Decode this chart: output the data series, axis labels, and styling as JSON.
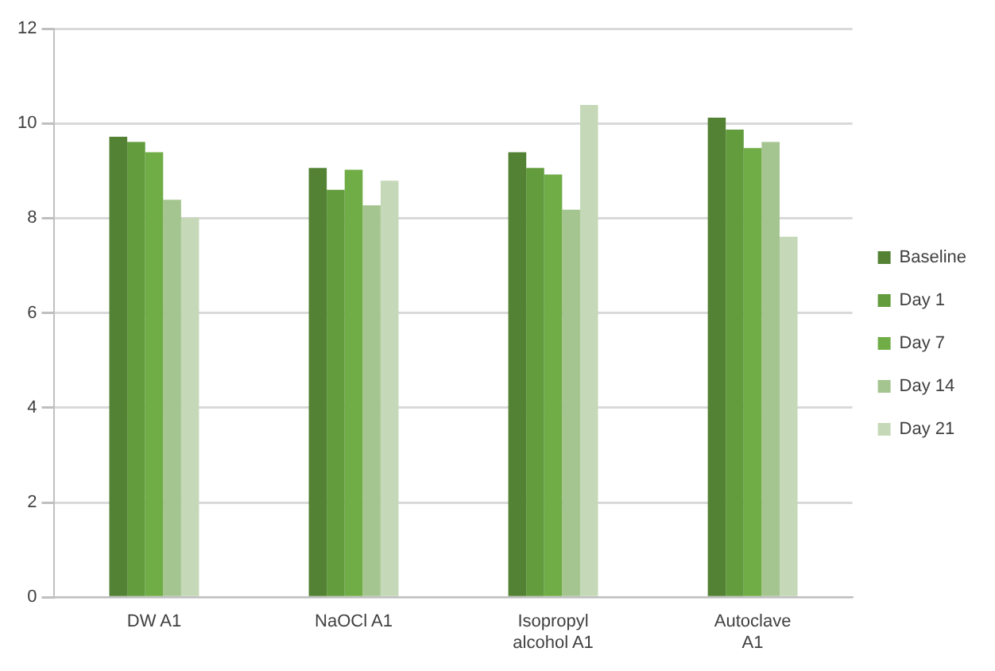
{
  "chart_data": {
    "type": "bar",
    "categories": [
      "DW A1",
      "NaOCl A1",
      "Isopropyl alcohol A1",
      "Autoclave A1"
    ],
    "series": [
      {
        "name": "Baseline",
        "color": "#548235",
        "values": [
          9.72,
          9.06,
          9.39,
          10.12
        ]
      },
      {
        "name": "Day 1",
        "color": "#629c3d",
        "values": [
          9.61,
          8.6,
          9.06,
          9.87
        ]
      },
      {
        "name": "Day 7",
        "color": "#70ad47",
        "values": [
          9.39,
          9.02,
          8.92,
          9.48
        ]
      },
      {
        "name": "Day 14",
        "color": "#a5c590",
        "values": [
          8.39,
          8.27,
          8.18,
          9.61
        ]
      },
      {
        "name": "Day 21",
        "color": "#c5d9b8",
        "values": [
          8.01,
          8.79,
          10.39,
          7.61
        ]
      }
    ],
    "ylim": [
      0,
      12
    ],
    "yticks": [
      0,
      2,
      4,
      6,
      8,
      10,
      12
    ],
    "grid": "y",
    "legend": "right"
  }
}
